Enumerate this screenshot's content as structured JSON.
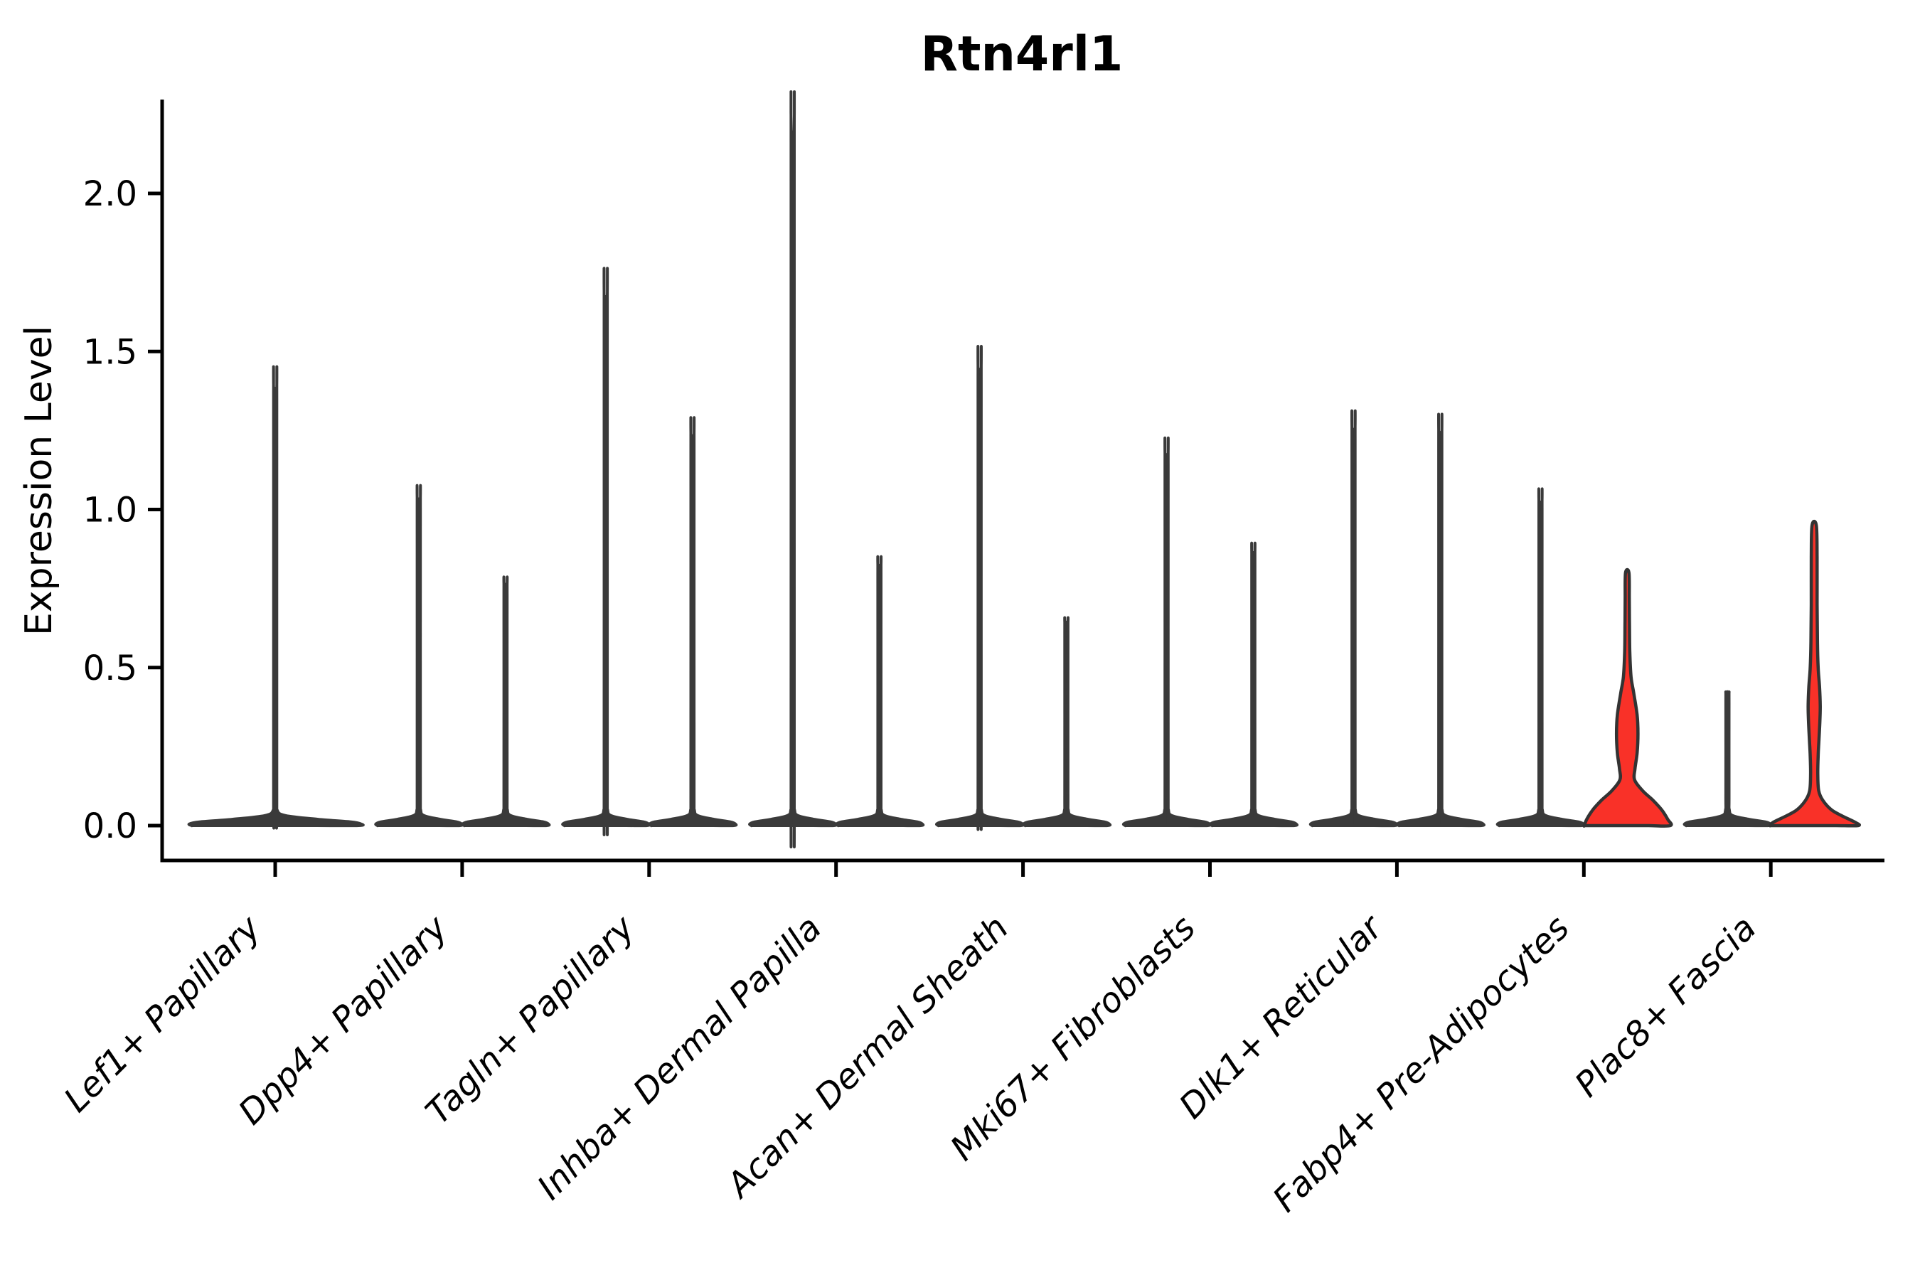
{
  "title": "Rtn4rl1",
  "colors": {
    "background": "#ffffff",
    "axis": "#000000",
    "violin_dark": "#3a3a3a",
    "violin_red_fill": "#f93128",
    "violin_red_stroke": "#333333"
  },
  "chart_data": {
    "type": "violin",
    "title": "Rtn4rl1",
    "xlabel": "",
    "ylabel": "Expression Level",
    "ytick_labels": [
      "0.0",
      "0.5",
      "1.0",
      "1.5",
      "2.0"
    ],
    "ytick_values": [
      0.0,
      0.5,
      1.0,
      1.5,
      2.0
    ],
    "ylim": [
      -0.11,
      2.29
    ],
    "grid": false,
    "legend": "none",
    "x_label_rotation_deg": 45,
    "categories": [
      "Lef1+ Papillary",
      "Dpp4+ Papillary",
      "Tagln+ Papillary",
      "Inhba+ Dermal Papilla",
      "Acan+ Dermal Sheath",
      "Mki67+ Fibroblasts",
      "Dlk1+ Reticular",
      "Fabp4+ Pre-Adipocytes",
      "Plac8+ Fascia"
    ],
    "violin_description": "Nearly all violins are bottom-heavy: a wide flat base at expression 0 with a thin spike to the max expression value. The two red-filled violins (second violin of Fabp4+ Pre-Adipocytes and of Plac8+ Fascia) have visible density bulges above 0.",
    "violins": [
      {
        "category": "Lef1+ Papillary",
        "slot": "single",
        "max_expression": 1.38,
        "fill": "dark",
        "profile": [
          [
            0,
            0.97
          ],
          [
            0.005,
            1.0
          ],
          [
            0.012,
            0.88
          ],
          [
            0.02,
            0.5
          ],
          [
            0.032,
            0.12
          ],
          [
            0.05,
            0.022
          ],
          [
            0.1,
            0.019
          ],
          [
            1.35,
            0.019
          ],
          [
            1.38,
            0.016
          ]
        ]
      },
      {
        "category": "Dpp4+ Papillary",
        "slot": "left",
        "max_expression": 1.03,
        "fill": "dark",
        "profile": [
          [
            0,
            0.48
          ],
          [
            0.005,
            0.5
          ],
          [
            0.012,
            0.44
          ],
          [
            0.02,
            0.25
          ],
          [
            0.032,
            0.06
          ],
          [
            0.05,
            0.022
          ],
          [
            0.1,
            0.019
          ],
          [
            1.0,
            0.019
          ],
          [
            1.03,
            0.016
          ]
        ]
      },
      {
        "category": "Dpp4+ Papillary",
        "slot": "right",
        "max_expression": 0.76,
        "fill": "dark",
        "profile": [
          [
            0,
            0.48
          ],
          [
            0.005,
            0.5
          ],
          [
            0.012,
            0.44
          ],
          [
            0.02,
            0.25
          ],
          [
            0.032,
            0.06
          ],
          [
            0.05,
            0.022
          ],
          [
            0.1,
            0.019
          ],
          [
            0.73,
            0.019
          ],
          [
            0.76,
            0.016
          ]
        ]
      },
      {
        "category": "Tagln+ Papillary",
        "slot": "left",
        "max_expression": 1.67,
        "fill": "dark",
        "profile": [
          [
            0,
            0.48
          ],
          [
            0.005,
            0.5
          ],
          [
            0.012,
            0.44
          ],
          [
            0.02,
            0.25
          ],
          [
            0.032,
            0.06
          ],
          [
            0.05,
            0.022
          ],
          [
            0.1,
            0.019
          ],
          [
            1.64,
            0.019
          ],
          [
            1.67,
            0.016
          ]
        ]
      },
      {
        "category": "Tagln+ Papillary",
        "slot": "right",
        "max_expression": 1.23,
        "fill": "dark",
        "profile": [
          [
            0,
            0.48
          ],
          [
            0.005,
            0.5
          ],
          [
            0.012,
            0.44
          ],
          [
            0.02,
            0.25
          ],
          [
            0.032,
            0.06
          ],
          [
            0.05,
            0.022
          ],
          [
            0.1,
            0.019
          ],
          [
            1.2,
            0.019
          ],
          [
            1.23,
            0.016
          ]
        ]
      },
      {
        "category": "Inhba+ Dermal Papilla",
        "slot": "left",
        "max_expression": 2.19,
        "fill": "dark",
        "profile": [
          [
            0,
            0.48
          ],
          [
            0.005,
            0.5
          ],
          [
            0.012,
            0.44
          ],
          [
            0.02,
            0.25
          ],
          [
            0.032,
            0.06
          ],
          [
            0.05,
            0.022
          ],
          [
            0.1,
            0.019
          ],
          [
            2.16,
            0.019
          ],
          [
            2.19,
            0.016
          ]
        ]
      },
      {
        "category": "Inhba+ Dermal Papilla",
        "slot": "right",
        "max_expression": 0.82,
        "fill": "dark",
        "profile": [
          [
            0,
            0.48
          ],
          [
            0.005,
            0.5
          ],
          [
            0.012,
            0.44
          ],
          [
            0.02,
            0.25
          ],
          [
            0.032,
            0.06
          ],
          [
            0.05,
            0.022
          ],
          [
            0.1,
            0.019
          ],
          [
            0.79,
            0.019
          ],
          [
            0.82,
            0.016
          ]
        ]
      },
      {
        "category": "Acan+ Dermal Sheath",
        "slot": "left",
        "max_expression": 1.44,
        "fill": "dark",
        "profile": [
          [
            0,
            0.48
          ],
          [
            0.005,
            0.5
          ],
          [
            0.012,
            0.44
          ],
          [
            0.02,
            0.25
          ],
          [
            0.032,
            0.06
          ],
          [
            0.05,
            0.022
          ],
          [
            0.1,
            0.019
          ],
          [
            1.41,
            0.019
          ],
          [
            1.44,
            0.016
          ]
        ]
      },
      {
        "category": "Acan+ Dermal Sheath",
        "slot": "right",
        "max_expression": 0.64,
        "fill": "dark",
        "profile": [
          [
            0,
            0.48
          ],
          [
            0.005,
            0.5
          ],
          [
            0.012,
            0.44
          ],
          [
            0.02,
            0.25
          ],
          [
            0.032,
            0.06
          ],
          [
            0.05,
            0.022
          ],
          [
            0.1,
            0.019
          ],
          [
            0.61,
            0.019
          ],
          [
            0.64,
            0.016
          ]
        ]
      },
      {
        "category": "Mki67+ Fibroblasts",
        "slot": "left",
        "max_expression": 1.17,
        "fill": "dark",
        "profile": [
          [
            0,
            0.48
          ],
          [
            0.005,
            0.5
          ],
          [
            0.012,
            0.44
          ],
          [
            0.02,
            0.25
          ],
          [
            0.032,
            0.06
          ],
          [
            0.05,
            0.022
          ],
          [
            0.1,
            0.019
          ],
          [
            1.14,
            0.019
          ],
          [
            1.17,
            0.016
          ]
        ]
      },
      {
        "category": "Mki67+ Fibroblasts",
        "slot": "right",
        "max_expression": 0.86,
        "fill": "dark",
        "profile": [
          [
            0,
            0.48
          ],
          [
            0.005,
            0.5
          ],
          [
            0.012,
            0.44
          ],
          [
            0.02,
            0.25
          ],
          [
            0.032,
            0.06
          ],
          [
            0.05,
            0.022
          ],
          [
            0.1,
            0.019
          ],
          [
            0.83,
            0.019
          ],
          [
            0.86,
            0.016
          ]
        ]
      },
      {
        "category": "Dlk1+ Reticular",
        "slot": "left",
        "max_expression": 1.25,
        "fill": "dark",
        "profile": [
          [
            0,
            0.48
          ],
          [
            0.005,
            0.5
          ],
          [
            0.012,
            0.44
          ],
          [
            0.02,
            0.25
          ],
          [
            0.032,
            0.06
          ],
          [
            0.05,
            0.022
          ],
          [
            0.1,
            0.019
          ],
          [
            1.22,
            0.019
          ],
          [
            1.25,
            0.016
          ]
        ]
      },
      {
        "category": "Dlk1+ Reticular",
        "slot": "right",
        "max_expression": 1.24,
        "fill": "dark",
        "profile": [
          [
            0,
            0.48
          ],
          [
            0.005,
            0.5
          ],
          [
            0.012,
            0.44
          ],
          [
            0.02,
            0.25
          ],
          [
            0.032,
            0.06
          ],
          [
            0.05,
            0.022
          ],
          [
            0.1,
            0.019
          ],
          [
            1.21,
            0.019
          ],
          [
            1.24,
            0.016
          ]
        ]
      },
      {
        "category": "Fabp4+ Pre-Adipocytes",
        "slot": "left",
        "max_expression": 1.02,
        "fill": "dark",
        "profile": [
          [
            0,
            0.48
          ],
          [
            0.005,
            0.5
          ],
          [
            0.012,
            0.44
          ],
          [
            0.02,
            0.25
          ],
          [
            0.032,
            0.06
          ],
          [
            0.05,
            0.022
          ],
          [
            0.1,
            0.019
          ],
          [
            0.99,
            0.019
          ],
          [
            1.02,
            0.016
          ]
        ]
      },
      {
        "category": "Fabp4+ Pre-Adipocytes",
        "slot": "right",
        "max_expression": 0.8,
        "fill": "red",
        "profile": [
          [
            0,
            0.5
          ],
          [
            0.02,
            0.47
          ],
          [
            0.05,
            0.4
          ],
          [
            0.08,
            0.3
          ],
          [
            0.11,
            0.18
          ],
          [
            0.145,
            0.085
          ],
          [
            0.18,
            0.09
          ],
          [
            0.23,
            0.115
          ],
          [
            0.29,
            0.125
          ],
          [
            0.35,
            0.115
          ],
          [
            0.42,
            0.075
          ],
          [
            0.47,
            0.045
          ],
          [
            0.55,
            0.03
          ],
          [
            0.65,
            0.026
          ],
          [
            0.72,
            0.024
          ],
          [
            0.8,
            0.02
          ]
        ]
      },
      {
        "category": "Plac8+ Fascia",
        "slot": "left",
        "max_expression": 0.42,
        "fill": "dark",
        "profile": [
          [
            0,
            0.48
          ],
          [
            0.005,
            0.5
          ],
          [
            0.012,
            0.44
          ],
          [
            0.02,
            0.25
          ],
          [
            0.032,
            0.06
          ],
          [
            0.05,
            0.022
          ],
          [
            0.1,
            0.019
          ],
          [
            0.39,
            0.019
          ],
          [
            0.42,
            0.016
          ]
        ]
      },
      {
        "category": "Plac8+ Fascia",
        "slot": "right",
        "max_expression": 0.95,
        "fill": "red",
        "profile": [
          [
            0,
            0.51
          ],
          [
            0.01,
            0.48
          ],
          [
            0.03,
            0.33
          ],
          [
            0.05,
            0.2
          ],
          [
            0.08,
            0.1
          ],
          [
            0.11,
            0.053
          ],
          [
            0.16,
            0.042
          ],
          [
            0.22,
            0.046
          ],
          [
            0.27,
            0.055
          ],
          [
            0.33,
            0.066
          ],
          [
            0.38,
            0.07
          ],
          [
            0.44,
            0.062
          ],
          [
            0.5,
            0.046
          ],
          [
            0.58,
            0.038
          ],
          [
            0.7,
            0.034
          ],
          [
            0.85,
            0.034
          ],
          [
            0.95,
            0.025
          ]
        ]
      }
    ]
  }
}
